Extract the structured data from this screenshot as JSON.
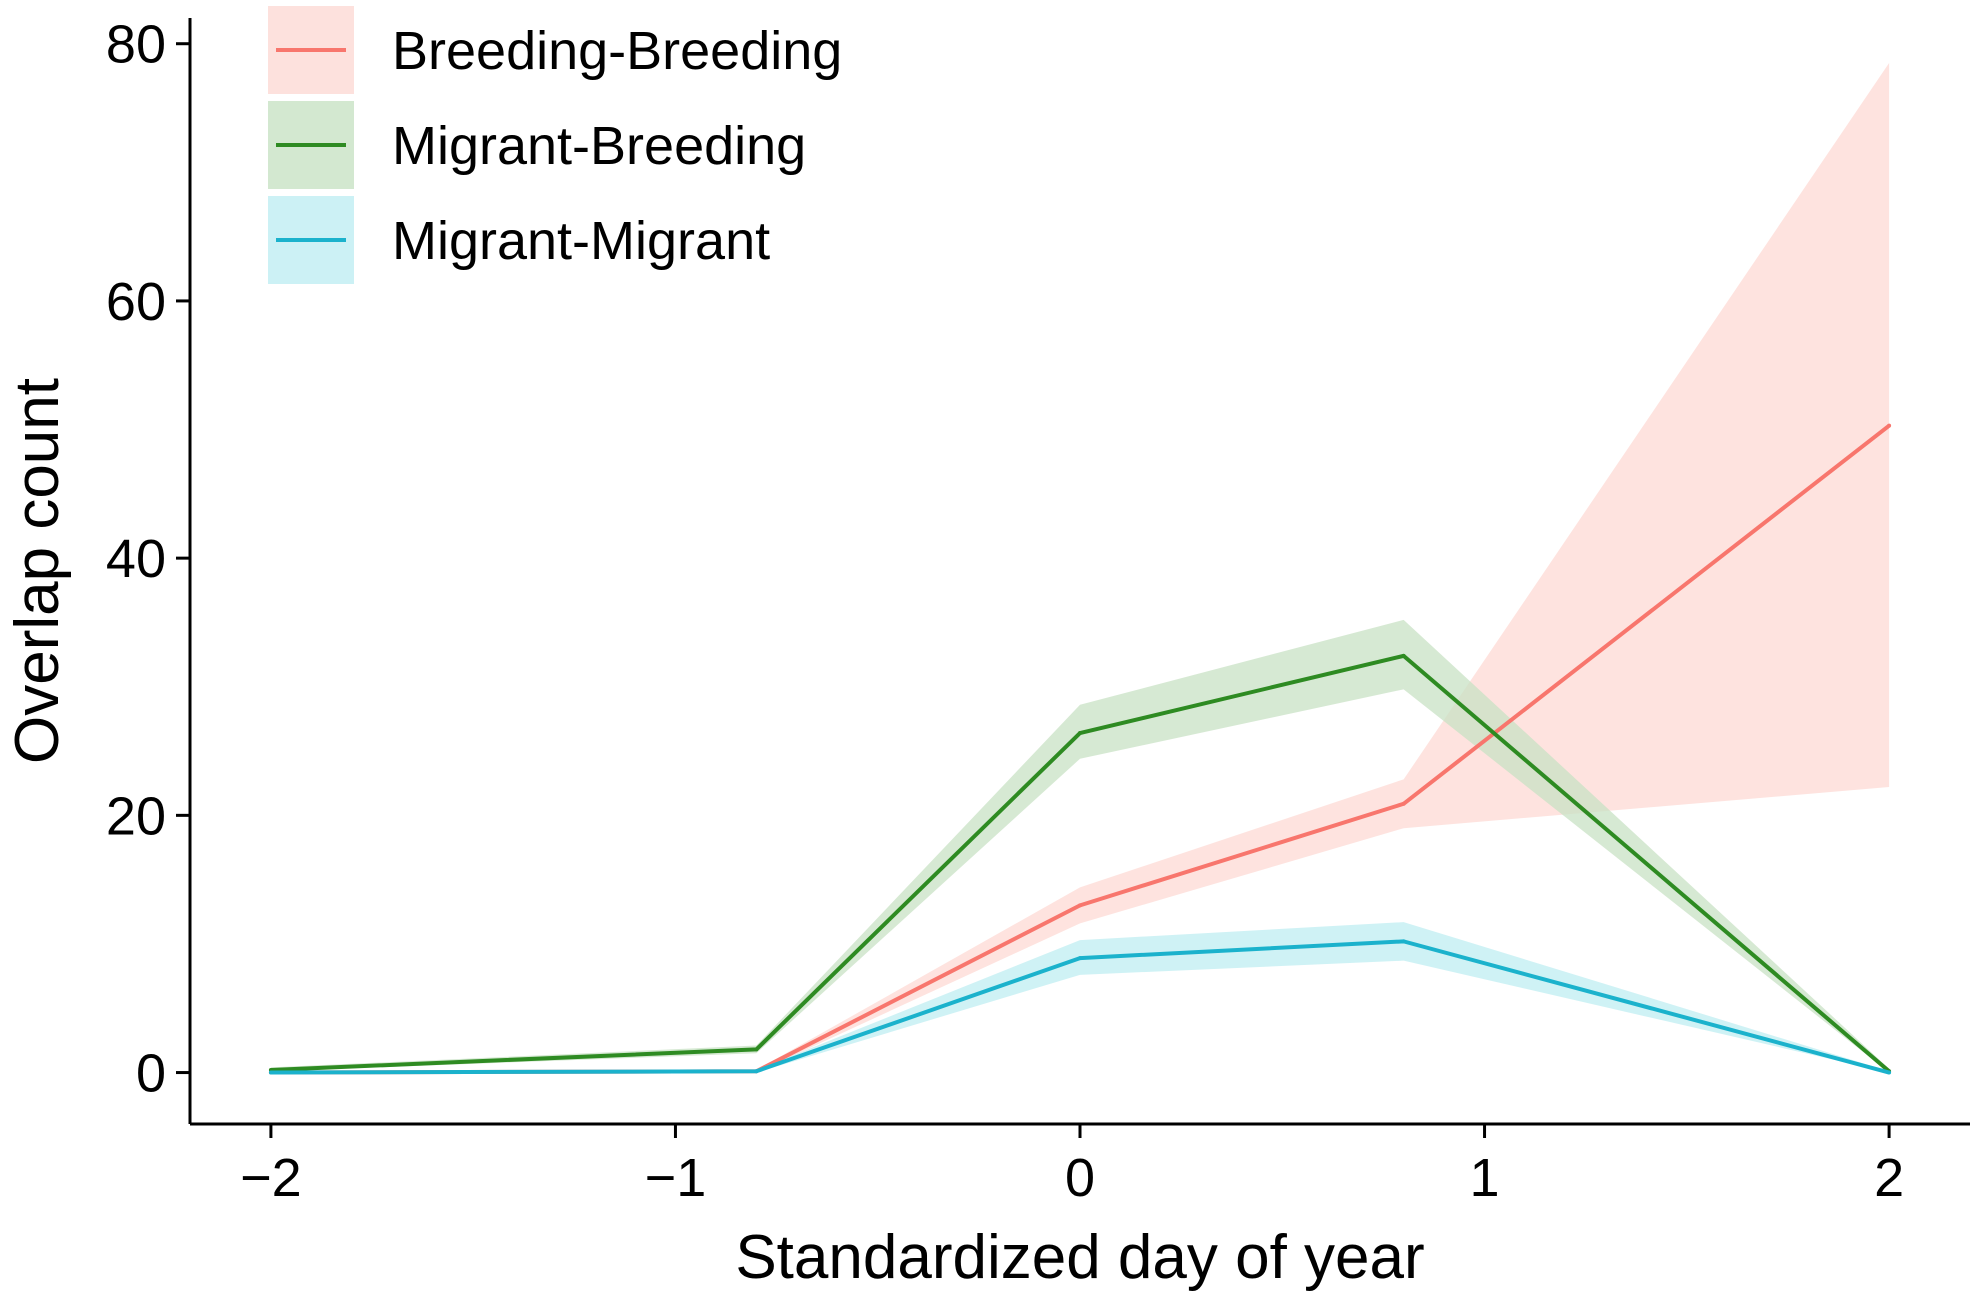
{
  "chart_data": {
    "type": "line",
    "title": "",
    "xlabel": "Standardized day of year",
    "ylabel": "Overlap count",
    "xlim": [
      -2.2,
      2.2
    ],
    "ylim": [
      -4,
      82
    ],
    "xticks": [
      -2,
      -1,
      0,
      1,
      2
    ],
    "xtick_labels": [
      "−2",
      "−1",
      "0",
      "1",
      "2"
    ],
    "yticks": [
      0,
      20,
      40,
      60,
      80
    ],
    "ytick_labels": [
      "0",
      "20",
      "40",
      "60",
      "80"
    ],
    "grid": false,
    "legend_position": "top-left",
    "x": [
      -2,
      -0.8,
      0,
      0.8,
      2
    ],
    "series": [
      {
        "name": "Breeding-Breeding",
        "color": "#F8766D",
        "fill": "#FDDAD4",
        "values": [
          0.0,
          0.1,
          13.0,
          20.9,
          50.3
        ],
        "lower": [
          0.0,
          0.0,
          11.6,
          19.0,
          22.2
        ],
        "upper": [
          0.0,
          0.2,
          14.4,
          22.8,
          78.5
        ]
      },
      {
        "name": "Migrant-Breeding",
        "color": "#2E8B22",
        "fill": "#C8E2C4",
        "values": [
          0.2,
          1.8,
          26.4,
          32.4,
          0.1
        ],
        "lower": [
          0.1,
          1.5,
          24.4,
          29.8,
          0.0
        ],
        "upper": [
          0.4,
          2.1,
          28.6,
          35.2,
          0.3
        ]
      },
      {
        "name": "Migrant-Migrant",
        "color": "#1BB2CC",
        "fill": "#BFEDF2",
        "values": [
          0.0,
          0.1,
          8.9,
          10.2,
          0.0
        ],
        "lower": [
          0.0,
          0.0,
          7.6,
          8.7,
          0.0
        ],
        "upper": [
          0.0,
          0.2,
          10.3,
          11.7,
          0.1
        ]
      }
    ]
  }
}
